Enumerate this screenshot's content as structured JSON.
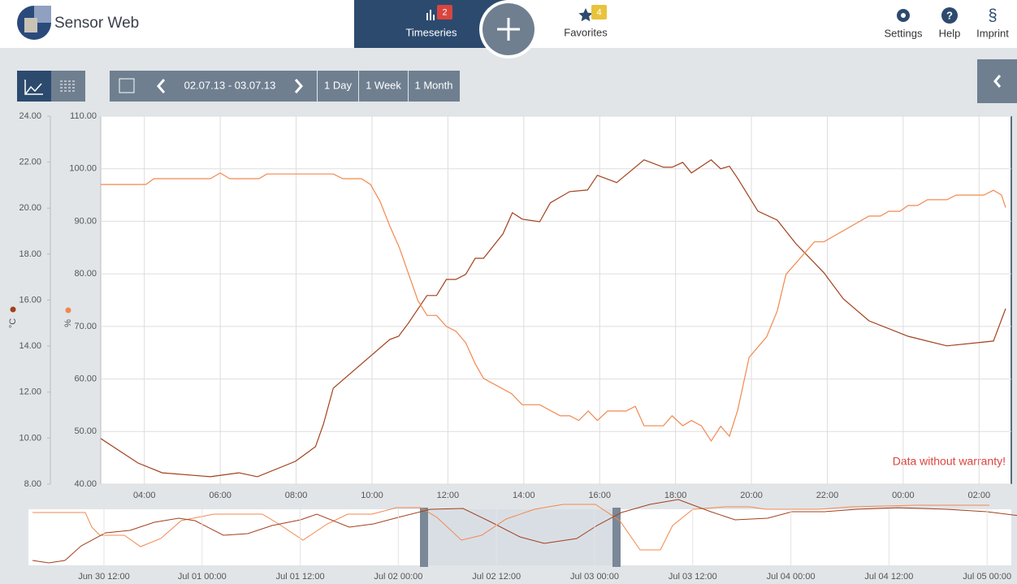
{
  "header": {
    "logo": "Sensor Web",
    "tabs": [
      {
        "label": "Timeseries",
        "badge": 2
      },
      {
        "label": "Favorites",
        "badge": 4
      }
    ],
    "menu": [
      "Settings",
      "Help",
      "Imprint"
    ]
  },
  "toolbar": {
    "date_range": "02.07.13 - 03.07.13",
    "presets": [
      "1 Day",
      "1 Week",
      "1 Month"
    ]
  },
  "chart_data": {
    "type": "line",
    "annotation": "Data without warranty!",
    "grid": true,
    "xlim": [
      2.85,
      26.85
    ],
    "xticks": [
      {
        "value": 4,
        "label": "04:00"
      },
      {
        "value": 6,
        "label": "06:00"
      },
      {
        "value": 8,
        "label": "08:00"
      },
      {
        "value": 10,
        "label": "10:00"
      },
      {
        "value": 12,
        "label": "12:00"
      },
      {
        "value": 14,
        "label": "14:00"
      },
      {
        "value": 16,
        "label": "16:00"
      },
      {
        "value": 18,
        "label": "18:00"
      },
      {
        "value": 20,
        "label": "20:00"
      },
      {
        "value": 22,
        "label": "22:00"
      },
      {
        "value": 24,
        "label": "00:00"
      },
      {
        "value": 26,
        "label": "02:00"
      }
    ],
    "ylabel": "°C",
    "ylim": [
      8,
      24
    ],
    "yticks": [
      {
        "value": 8,
        "label": "8.00"
      },
      {
        "value": 10,
        "label": "10.00"
      },
      {
        "value": 12,
        "label": "12.00"
      },
      {
        "value": 14,
        "label": "14.00"
      },
      {
        "value": 16,
        "label": "16.00"
      },
      {
        "value": 18,
        "label": "18.00"
      },
      {
        "value": 20,
        "label": "20.00"
      },
      {
        "value": 22,
        "label": "22.00"
      },
      {
        "value": 24,
        "label": "24.00"
      }
    ],
    "y2label": "%",
    "y2lim": [
      40,
      110
    ],
    "y2ticks": [
      {
        "value": 40,
        "label": "40.00"
      },
      {
        "value": 50,
        "label": "50.00"
      },
      {
        "value": 60,
        "label": "60.00"
      },
      {
        "value": 70,
        "label": "70.00"
      },
      {
        "value": 80,
        "label": "80.00"
      },
      {
        "value": 90,
        "label": "90.00"
      },
      {
        "value": 100,
        "label": "100.00"
      },
      {
        "value": 110,
        "label": "110.00"
      }
    ],
    "series": [
      {
        "color": "#a2401c",
        "axis": "y",
        "x": [
          2.85,
          3.83,
          4.47,
          5.74,
          6.49,
          6.98,
          7.98,
          8.51,
          8.72,
          8.98,
          10.47,
          10.7,
          10.96,
          11.45,
          11.7,
          11.96,
          12.21,
          12.47,
          12.72,
          12.94,
          13.45,
          13.7,
          13.96,
          14.42,
          14.7,
          15.21,
          15.68,
          15.94,
          16.45,
          17.17,
          17.68,
          17.91,
          18.19,
          18.42,
          18.94,
          19.19,
          19.42,
          19.64,
          20.17,
          20.68,
          21.17,
          21.91,
          22.42,
          23.1,
          24.13,
          25.15,
          26.38,
          26.7
        ],
        "values": [
          9.98,
          8.92,
          8.49,
          8.32,
          8.49,
          8.32,
          8.99,
          9.63,
          10.61,
          12.17,
          14.29,
          14.43,
          15.0,
          16.2,
          16.2,
          16.9,
          16.9,
          17.12,
          17.82,
          17.82,
          18.88,
          19.8,
          19.52,
          19.41,
          20.23,
          20.72,
          20.79,
          21.43,
          21.11,
          22.1,
          21.78,
          21.78,
          21.99,
          21.53,
          22.1,
          21.71,
          21.82,
          21.29,
          19.87,
          19.48,
          18.46,
          17.19,
          16.06,
          15.1,
          14.43,
          14.01,
          14.22,
          15.63
        ]
      },
      {
        "color": "#f2884e",
        "axis": "y2",
        "x": [
          2.85,
          4.04,
          4.25,
          5.74,
          6.0,
          6.25,
          7.02,
          7.23,
          8.98,
          9.23,
          9.72,
          9.96,
          10.21,
          10.47,
          10.72,
          11.21,
          11.45,
          11.7,
          11.96,
          12.21,
          12.47,
          12.72,
          12.94,
          13.68,
          13.96,
          14.42,
          14.96,
          15.21,
          15.45,
          15.7,
          15.94,
          16.21,
          16.7,
          16.94,
          17.17,
          17.68,
          17.91,
          18.19,
          18.42,
          18.68,
          18.94,
          19.19,
          19.42,
          19.64,
          19.94,
          20.4,
          20.68,
          20.91,
          21.66,
          21.91,
          23.1,
          23.4,
          23.62,
          23.91,
          24.13,
          24.38,
          24.64,
          25.15,
          25.4,
          26.13,
          26.38,
          26.59,
          26.7
        ],
        "values": [
          97.0,
          97.0,
          98.1,
          98.1,
          99.2,
          98.1,
          98.1,
          99.0,
          99.0,
          98.1,
          98.1,
          97.0,
          93.8,
          89.1,
          85.0,
          74.9,
          72.1,
          72.1,
          70.0,
          69.1,
          66.9,
          62.9,
          60.1,
          57.2,
          55.1,
          55.1,
          53.0,
          53.0,
          52.1,
          53.9,
          52.1,
          53.9,
          53.9,
          54.8,
          51.1,
          51.1,
          53.0,
          51.1,
          52.1,
          51.1,
          48.2,
          51.0,
          49.1,
          54.1,
          64.1,
          68.0,
          72.9,
          79.9,
          86.1,
          86.1,
          91.0,
          91.0,
          91.9,
          91.9,
          93.0,
          93.0,
          94.1,
          94.1,
          95.0,
          95.0,
          95.9,
          95.0,
          92.6
        ]
      }
    ]
  },
  "overview": {
    "ticks": [
      "Jun 30 12:00",
      "Jul 01 00:00",
      "Jul 01 12:00",
      "Jul 02 00:00",
      "Jul 02 12:00",
      "Jul 03 00:00",
      "Jul 03 12:00",
      "Jul 04 00:00",
      "Jul 04 12:00",
      "Jul 05 00:00"
    ]
  }
}
